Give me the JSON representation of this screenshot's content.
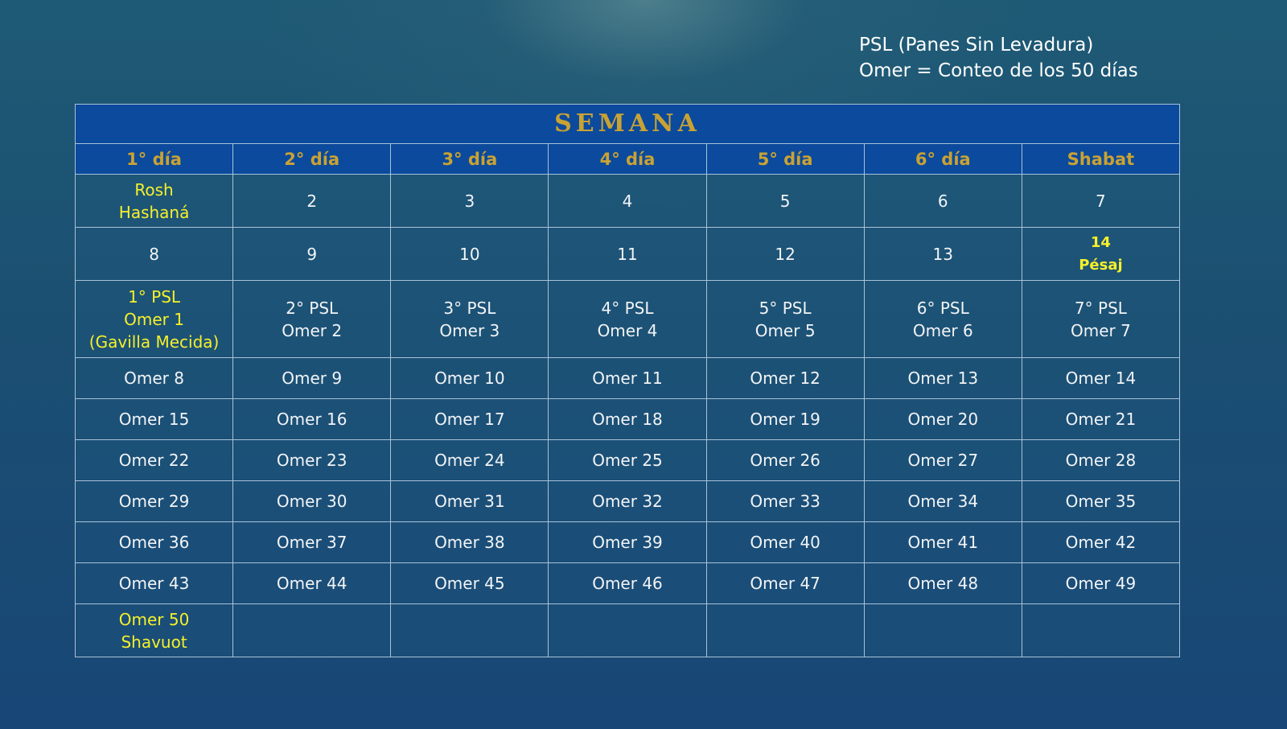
{
  "legend": [
    "PSL (Panes Sin Levadura)",
    "Omer = Conteo de los 50 días"
  ],
  "table": {
    "title": "SEMANA",
    "days": [
      "1° día",
      "2° día",
      "3° día",
      "4° día",
      "5° día",
      "6° día",
      "Shabat"
    ],
    "rows": [
      [
        {
          "lines": [
            "Rosh",
            "Hashaná"
          ],
          "highlight": true
        },
        {
          "lines": [
            "2"
          ]
        },
        {
          "lines": [
            "3"
          ]
        },
        {
          "lines": [
            "4"
          ]
        },
        {
          "lines": [
            "5"
          ]
        },
        {
          "lines": [
            "6"
          ]
        },
        {
          "lines": [
            "7"
          ]
        }
      ],
      [
        {
          "lines": [
            "8"
          ]
        },
        {
          "lines": [
            "9"
          ]
        },
        {
          "lines": [
            "10"
          ]
        },
        {
          "lines": [
            "11"
          ]
        },
        {
          "lines": [
            "12"
          ]
        },
        {
          "lines": [
            "13"
          ]
        },
        {
          "lines": [
            "14",
            "Pésaj"
          ],
          "highlight": true,
          "bold": true
        }
      ],
      [
        {
          "lines": [
            "1° PSL",
            "Omer 1",
            "(Gavilla Mecida)"
          ],
          "highlight": true
        },
        {
          "lines": [
            "2° PSL",
            "Omer 2"
          ]
        },
        {
          "lines": [
            "3° PSL",
            "Omer 3"
          ]
        },
        {
          "lines": [
            "4° PSL",
            "Omer 4"
          ]
        },
        {
          "lines": [
            "5° PSL",
            "Omer 5"
          ]
        },
        {
          "lines": [
            "6° PSL",
            "Omer 6"
          ]
        },
        {
          "lines": [
            "7° PSL",
            "Omer 7"
          ]
        }
      ],
      [
        {
          "lines": [
            "Omer 8"
          ]
        },
        {
          "lines": [
            "Omer 9"
          ]
        },
        {
          "lines": [
            "Omer 10"
          ]
        },
        {
          "lines": [
            "Omer 11"
          ]
        },
        {
          "lines": [
            "Omer 12"
          ]
        },
        {
          "lines": [
            "Omer 13"
          ]
        },
        {
          "lines": [
            "Omer 14"
          ]
        }
      ],
      [
        {
          "lines": [
            "Omer 15"
          ]
        },
        {
          "lines": [
            "Omer 16"
          ]
        },
        {
          "lines": [
            "Omer 17"
          ]
        },
        {
          "lines": [
            "Omer 18"
          ]
        },
        {
          "lines": [
            "Omer 19"
          ]
        },
        {
          "lines": [
            "Omer 20"
          ]
        },
        {
          "lines": [
            "Omer 21"
          ]
        }
      ],
      [
        {
          "lines": [
            "Omer 22"
          ]
        },
        {
          "lines": [
            "Omer 23"
          ]
        },
        {
          "lines": [
            "Omer 24"
          ]
        },
        {
          "lines": [
            "Omer 25"
          ]
        },
        {
          "lines": [
            "Omer 26"
          ]
        },
        {
          "lines": [
            "Omer 27"
          ]
        },
        {
          "lines": [
            "Omer 28"
          ]
        }
      ],
      [
        {
          "lines": [
            "Omer 29"
          ]
        },
        {
          "lines": [
            "Omer 30"
          ]
        },
        {
          "lines": [
            "Omer 31"
          ]
        },
        {
          "lines": [
            "Omer 32"
          ]
        },
        {
          "lines": [
            "Omer 33"
          ]
        },
        {
          "lines": [
            "Omer 34"
          ]
        },
        {
          "lines": [
            "Omer 35"
          ]
        }
      ],
      [
        {
          "lines": [
            "Omer 36"
          ]
        },
        {
          "lines": [
            "Omer 37"
          ]
        },
        {
          "lines": [
            "Omer 38"
          ]
        },
        {
          "lines": [
            "Omer 39"
          ]
        },
        {
          "lines": [
            "Omer 40"
          ]
        },
        {
          "lines": [
            "Omer 41"
          ]
        },
        {
          "lines": [
            "Omer 42"
          ]
        }
      ],
      [
        {
          "lines": [
            "Omer 43"
          ]
        },
        {
          "lines": [
            "Omer 44"
          ]
        },
        {
          "lines": [
            "Omer 45"
          ]
        },
        {
          "lines": [
            "Omer 46"
          ]
        },
        {
          "lines": [
            "Omer 47"
          ]
        },
        {
          "lines": [
            "Omer 48"
          ]
        },
        {
          "lines": [
            "Omer 49"
          ]
        }
      ],
      [
        {
          "lines": [
            "Omer 50",
            "Shavuot"
          ],
          "highlight": true
        },
        {
          "lines": []
        },
        {
          "lines": []
        },
        {
          "lines": []
        },
        {
          "lines": []
        },
        {
          "lines": []
        },
        {
          "lines": []
        }
      ]
    ]
  },
  "colors": {
    "header_bg": "#0b4a9c",
    "header_text": "#c9a234",
    "highlight": "#f6f02a",
    "text": "#f2f4f6"
  }
}
